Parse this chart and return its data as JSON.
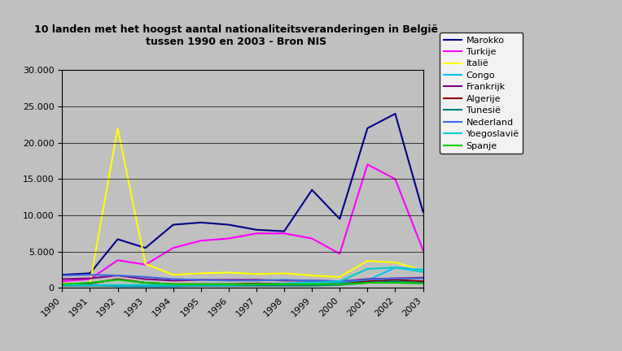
{
  "title": "10 landen met het hoogst aantal nationaliteitsveranderingen in België\ntussen 1990 en 2003 - Bron NIS",
  "years": [
    1990,
    1991,
    1992,
    1993,
    1994,
    1995,
    1996,
    1997,
    1998,
    1999,
    2000,
    2001,
    2002,
    2003
  ],
  "series": [
    {
      "name": "Marokko",
      "color": "#00008B",
      "values": [
        1800,
        2000,
        6700,
        5500,
        8700,
        9000,
        8700,
        8000,
        7800,
        13500,
        9500,
        22000,
        24000,
        10500
      ]
    },
    {
      "name": "Turkije",
      "color": "#FF00FF",
      "values": [
        900,
        1200,
        3800,
        3200,
        5500,
        6500,
        6800,
        7500,
        7500,
        6800,
        4700,
        17000,
        15000,
        5200
      ]
    },
    {
      "name": "Italië",
      "color": "#FFFF00",
      "values": [
        600,
        600,
        22000,
        3300,
        1800,
        2000,
        2100,
        1900,
        2000,
        1700,
        1500,
        3700,
        3500,
        2400
      ]
    },
    {
      "name": "Congo",
      "color": "#00BFFF",
      "values": [
        400,
        400,
        200,
        200,
        200,
        300,
        300,
        400,
        600,
        800,
        700,
        1000,
        2800,
        2500
      ]
    },
    {
      "name": "Frankrijk",
      "color": "#800080",
      "values": [
        1200,
        1300,
        1700,
        1200,
        1000,
        1100,
        1100,
        1100,
        1000,
        1000,
        900,
        1200,
        1300,
        1400
      ]
    },
    {
      "name": "Algerije",
      "color": "#8B0000",
      "values": [
        500,
        600,
        1200,
        700,
        500,
        500,
        500,
        600,
        500,
        500,
        500,
        900,
        1100,
        900
      ]
    },
    {
      "name": "Tunesië",
      "color": "#008080",
      "values": [
        300,
        300,
        300,
        300,
        300,
        300,
        300,
        300,
        300,
        300,
        400,
        700,
        900,
        700
      ]
    },
    {
      "name": "Nederland",
      "color": "#4169E1",
      "values": [
        1700,
        1800,
        1700,
        1500,
        1200,
        1100,
        1000,
        1000,
        1100,
        1000,
        900,
        1100,
        1300,
        1300
      ]
    },
    {
      "name": "Yoegoslavië",
      "color": "#00CED1",
      "values": [
        400,
        400,
        400,
        400,
        400,
        400,
        400,
        500,
        500,
        700,
        900,
        2600,
        2800,
        2200
      ]
    },
    {
      "name": "Spanje",
      "color": "#00CC00",
      "values": [
        500,
        700,
        1100,
        700,
        500,
        500,
        500,
        500,
        500,
        500,
        500,
        700,
        700,
        600
      ]
    }
  ],
  "ylim": [
    0,
    30000
  ],
  "yticks": [
    0,
    5000,
    10000,
    15000,
    20000,
    25000,
    30000
  ],
  "background_color": "#C0C0C0",
  "plot_bg_color": "#C0C0C0",
  "outer_bg_color": "#C0C0C0"
}
